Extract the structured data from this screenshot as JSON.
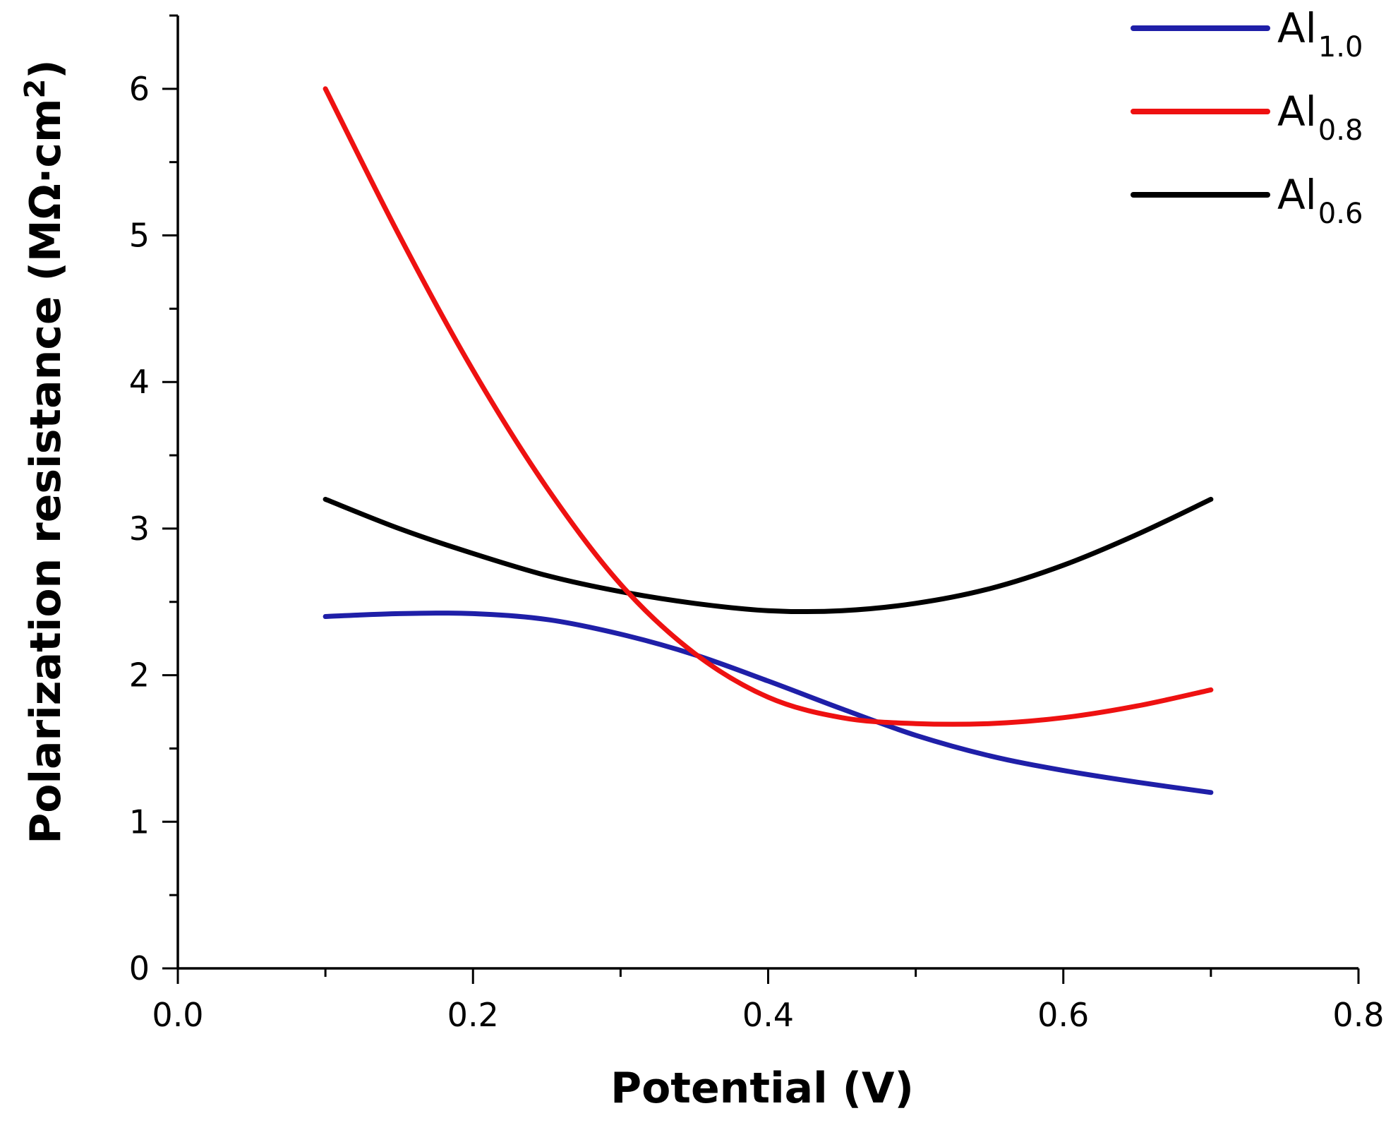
{
  "chart_data": {
    "type": "line",
    "title": "",
    "xlabel": "Potential (V)",
    "ylabel_main": "Polarization resistance (MΩ·cm",
    "ylabel_sup": "2",
    "ylabel_close": ")",
    "xlim": [
      0.0,
      0.8
    ],
    "ylim": [
      0,
      6.5
    ],
    "xticks": [
      "0.0",
      "0.2",
      "0.4",
      "0.6",
      "0.8"
    ],
    "yticks": [
      "0",
      "1",
      "2",
      "3",
      "4",
      "5",
      "6"
    ],
    "grid": false,
    "legend_position": "top-right",
    "series": [
      {
        "name": "Al1.0",
        "label_base": "Al",
        "label_sub": "1.0",
        "color": "#1f1fa8",
        "x": [
          0.1,
          0.15,
          0.2,
          0.25,
          0.3,
          0.35,
          0.4,
          0.45,
          0.5,
          0.55,
          0.6,
          0.65,
          0.7
        ],
        "y": [
          2.4,
          2.42,
          2.42,
          2.38,
          2.28,
          2.14,
          1.96,
          1.77,
          1.59,
          1.45,
          1.35,
          1.27,
          1.2
        ]
      },
      {
        "name": "Al0.8",
        "label_base": "Al",
        "label_sub": "0.8",
        "color": "#ee1111",
        "x": [
          0.1,
          0.15,
          0.2,
          0.25,
          0.3,
          0.35,
          0.4,
          0.45,
          0.5,
          0.55,
          0.6,
          0.65,
          0.7
        ],
        "y": [
          6.0,
          5.0,
          4.08,
          3.28,
          2.62,
          2.15,
          1.85,
          1.71,
          1.67,
          1.67,
          1.71,
          1.79,
          1.9
        ]
      },
      {
        "name": "Al0.6",
        "label_base": "Al",
        "label_sub": "0.6",
        "color": "#000000",
        "x": [
          0.1,
          0.15,
          0.2,
          0.25,
          0.3,
          0.35,
          0.4,
          0.45,
          0.5,
          0.55,
          0.6,
          0.65,
          0.7
        ],
        "y": [
          3.2,
          3.0,
          2.83,
          2.68,
          2.57,
          2.49,
          2.44,
          2.44,
          2.49,
          2.59,
          2.75,
          2.96,
          3.2
        ]
      }
    ]
  }
}
